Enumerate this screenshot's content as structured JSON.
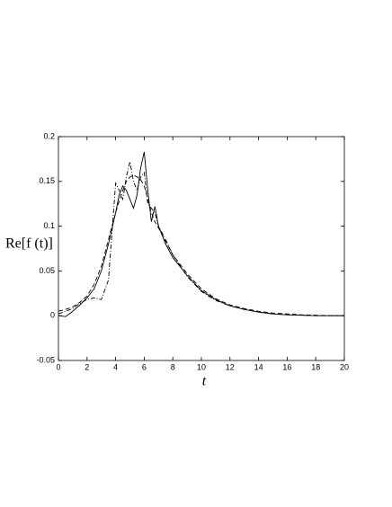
{
  "chart_data": {
    "type": "line",
    "x_label": "t",
    "y_label": "Re[f (t)]",
    "x": [
      0,
      0.5,
      1,
      1.5,
      2,
      2.5,
      3,
      3.5,
      4,
      4.25,
      4.5,
      4.75,
      5,
      5.25,
      5.5,
      5.75,
      6,
      6.25,
      6.5,
      6.75,
      7,
      7.5,
      8,
      9,
      10,
      11,
      12,
      13,
      14,
      15,
      16,
      17,
      18,
      19,
      20
    ],
    "series": [
      {
        "color": "#000000",
        "dash": "solid",
        "values": [
          0,
          -0.001,
          0.005,
          0.012,
          0.02,
          0.03,
          0.05,
          0.08,
          0.115,
          0.135,
          0.145,
          0.14,
          0.13,
          0.12,
          0.135,
          0.165,
          0.183,
          0.14,
          0.105,
          0.122,
          0.1,
          0.08,
          0.065,
          0.045,
          0.028,
          0.018,
          0.011,
          0.007,
          0.004,
          0.002,
          0.001,
          0.0005,
          0,
          0,
          0
        ]
      },
      {
        "color": "#000000",
        "dash": "dashed",
        "values": [
          0.005,
          0.007,
          0.01,
          0.015,
          0.022,
          0.035,
          0.055,
          0.085,
          0.115,
          0.128,
          0.14,
          0.15,
          0.155,
          0.157,
          0.155,
          0.152,
          0.145,
          0.13,
          0.115,
          0.105,
          0.098,
          0.083,
          0.068,
          0.047,
          0.03,
          0.019,
          0.012,
          0.008,
          0.005,
          0.003,
          0.002,
          0.001,
          0.0005,
          0,
          0
        ]
      },
      {
        "color": "#000000",
        "dash": "dashdot",
        "values": [
          0.002,
          0.005,
          0.008,
          0.014,
          0.018,
          0.02,
          0.018,
          0.04,
          0.148,
          0.14,
          0.13,
          0.155,
          0.172,
          0.15,
          0.14,
          0.155,
          0.16,
          0.125,
          0.12,
          0.115,
          0.1,
          0.085,
          0.068,
          0.044,
          0.027,
          0.017,
          0.011,
          0.007,
          0.004,
          0.002,
          0.001,
          0.0005,
          0,
          0,
          0
        ]
      }
    ],
    "xlim": [
      0,
      20
    ],
    "xticks": [
      0,
      2,
      4,
      6,
      8,
      10,
      12,
      14,
      16,
      18,
      20
    ],
    "ylim": [
      -0.05,
      0.2
    ],
    "yticks": [
      -0.05,
      0,
      0.05,
      0.1,
      0.15,
      0.2
    ],
    "grid": false
  }
}
